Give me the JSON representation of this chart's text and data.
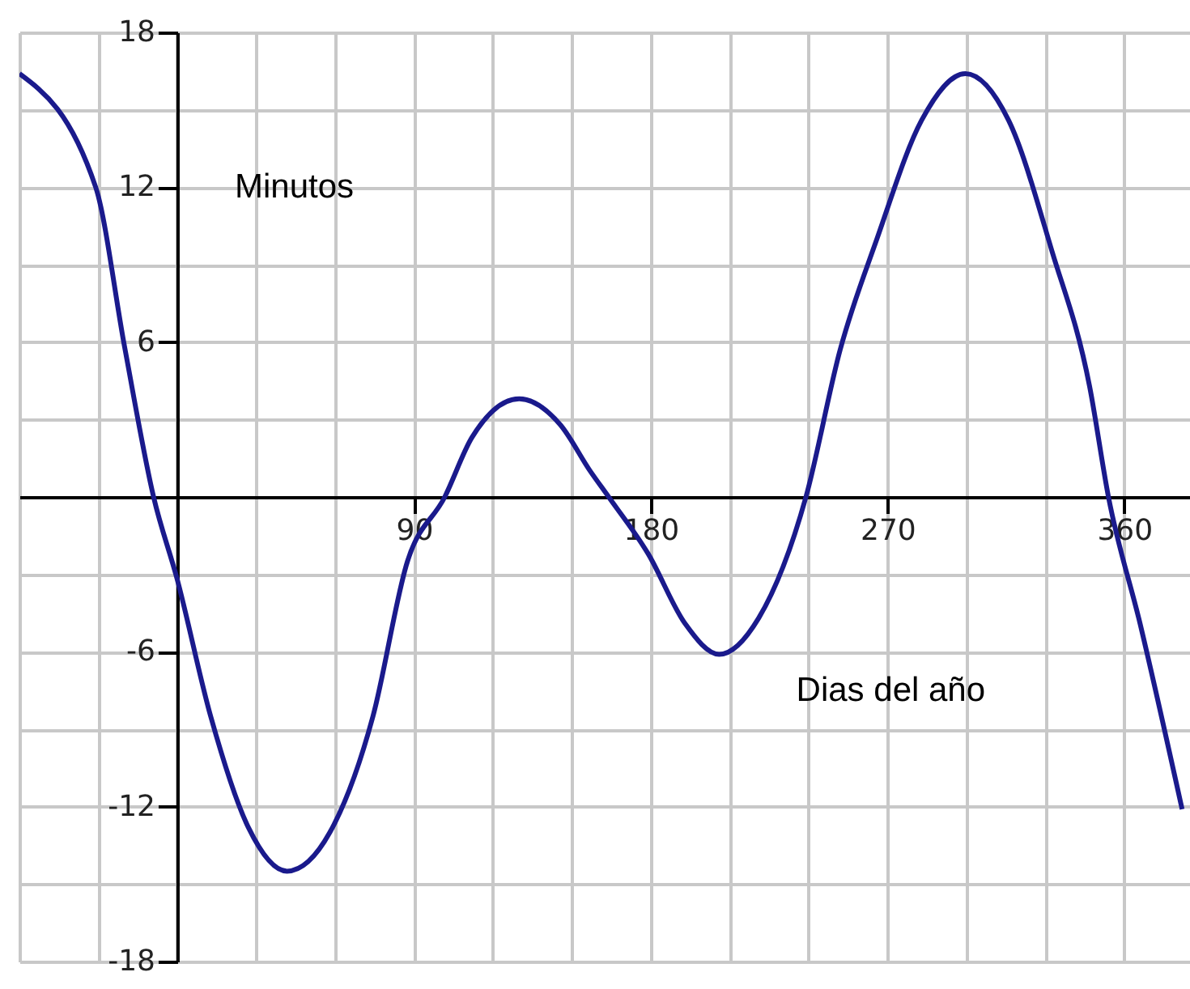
{
  "chart_data": {
    "type": "line",
    "xlabel": "Dias del año",
    "ylabel": "Minutos",
    "x": [
      -60,
      -31,
      -20,
      -9,
      0,
      12.7,
      27,
      41.7,
      58,
      74.4,
      87.5,
      101.7,
      112,
      130,
      145.6,
      157,
      164,
      179,
      193,
      206,
      221,
      239,
      252,
      266,
      283,
      299.6,
      316,
      332.6,
      346.8,
      354,
      366,
      382
    ],
    "series": [
      {
        "color": "#1a1a8c",
        "values": [
          16.4,
          12.0,
          5.8,
          0,
          -3.2,
          -8.5,
          -12.8,
          -14.5,
          -13.0,
          -8.5,
          -2.5,
          0,
          2.3,
          3.8,
          2.8,
          1.0,
          0,
          -2.2,
          -4.9,
          -6.1,
          -4.7,
          0,
          5.7,
          10.0,
          14.6,
          16.4,
          14.6,
          9.5,
          4.3,
          0,
          -4.9,
          -12.1
        ]
      }
    ],
    "xlim": [
      -60,
      385
    ],
    "xticks": [
      {
        "value": -60,
        "label": null
      },
      {
        "value": -30,
        "label": null
      },
      {
        "value": 0,
        "label": null
      },
      {
        "value": 30,
        "label": null
      },
      {
        "value": 60,
        "label": null
      },
      90,
      {
        "value": 120,
        "label": null
      },
      {
        "value": 150,
        "label": null
      },
      180,
      {
        "value": 210,
        "label": null
      },
      {
        "value": 240,
        "label": null
      },
      270,
      {
        "value": 300,
        "label": null
      },
      {
        "value": 330,
        "label": null
      },
      360
    ],
    "ylim": [
      -18,
      18
    ],
    "yticks": [
      -18,
      {
        "value": -15,
        "label": null
      },
      -12,
      {
        "value": -9,
        "label": null
      },
      -6,
      {
        "value": -3,
        "label": null
      },
      {
        "value": 0,
        "label": null
      },
      {
        "value": 3,
        "label": null
      },
      6,
      {
        "value": 9,
        "label": null
      },
      12,
      {
        "value": 15,
        "label": null
      },
      18
    ],
    "grid": true,
    "legend": false,
    "marker": "none",
    "line_style": "solid"
  }
}
